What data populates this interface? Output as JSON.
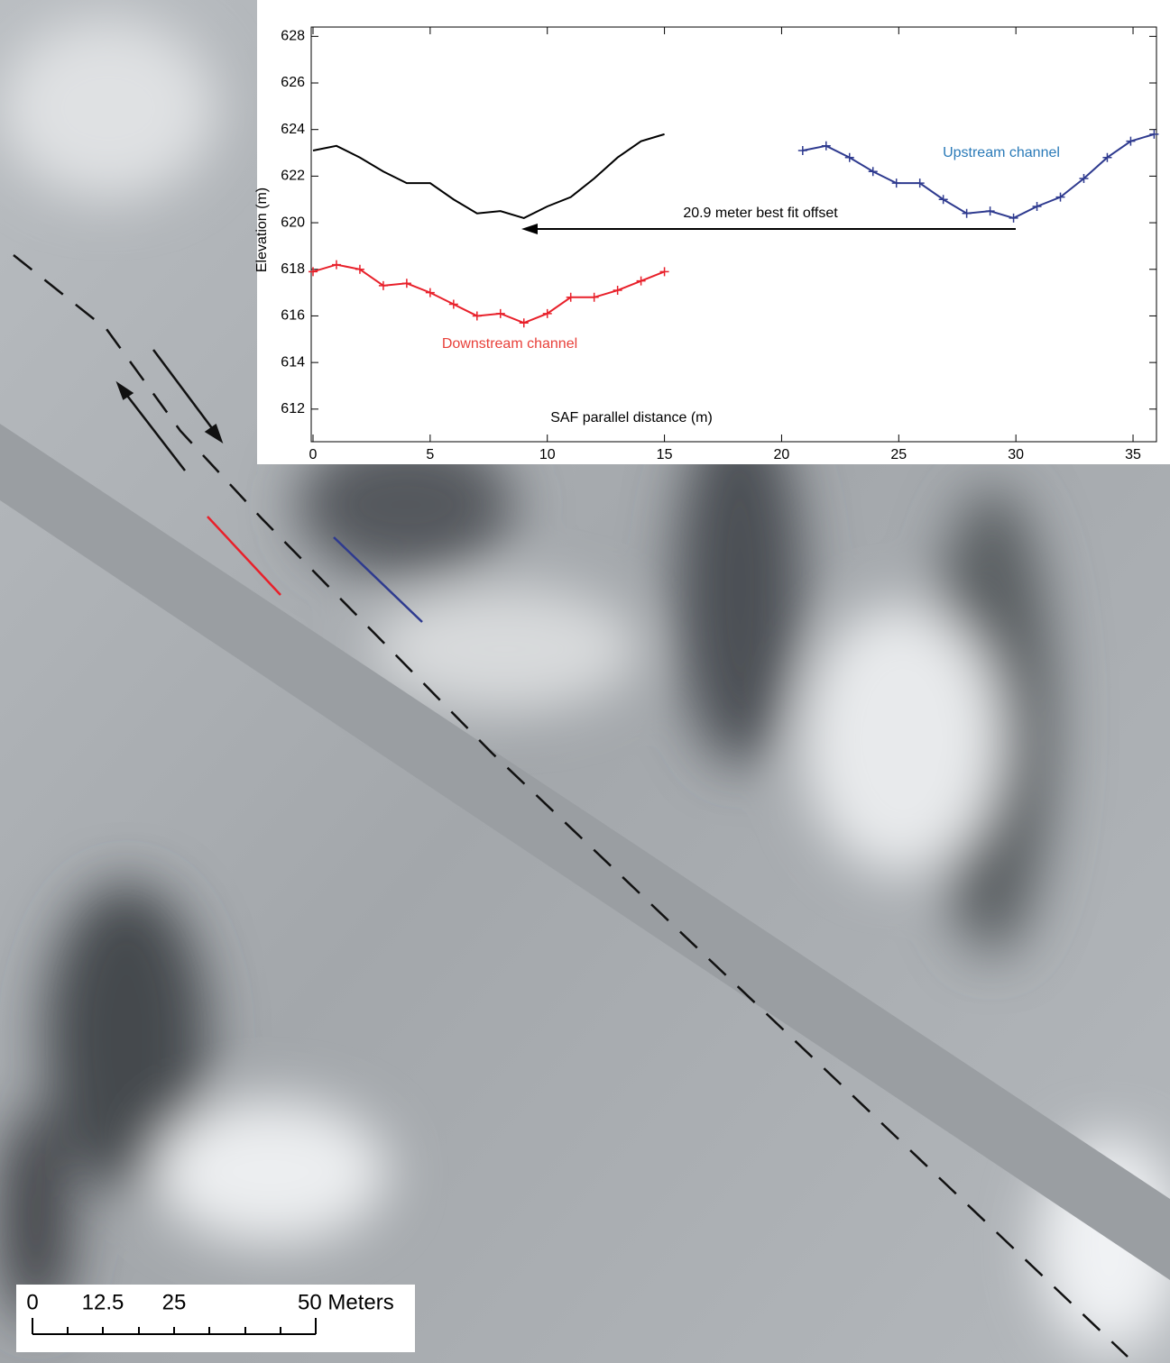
{
  "chart_data": {
    "type": "line",
    "ylabel": "Elevation (m)",
    "xlabel": "SAF parallel distance (m)",
    "annotation": "20.9 meter best fit offset",
    "xlim": [
      0,
      36
    ],
    "xticks": [
      0,
      5,
      10,
      15,
      20,
      25,
      30,
      35
    ],
    "ylim": [
      610.6,
      628.4
    ],
    "yticks": [
      612,
      614,
      616,
      618,
      620,
      622,
      624,
      626,
      628
    ],
    "series": [
      {
        "color": "#000000",
        "markers": false,
        "x": [
          0,
          1,
          2,
          3,
          4,
          5,
          6,
          7,
          8,
          9,
          10,
          11,
          12,
          13,
          14,
          15
        ],
        "values": [
          623.1,
          623.3,
          622.8,
          622.2,
          621.7,
          621.7,
          621.0,
          620.4,
          620.5,
          620.2,
          620.7,
          621.1,
          621.9,
          622.8,
          623.5,
          623.8
        ]
      },
      {
        "name": "Upstream channel",
        "color": "#2e3a8f",
        "label_color": "#2a7ab8",
        "markers": true,
        "x": [
          20.9,
          21.9,
          22.9,
          23.9,
          24.9,
          25.9,
          26.9,
          27.9,
          28.9,
          29.9,
          30.9,
          31.9,
          32.9,
          33.9,
          34.9,
          35.9
        ],
        "values": [
          623.1,
          623.3,
          622.8,
          622.2,
          621.7,
          621.7,
          621.0,
          620.4,
          620.5,
          620.2,
          620.7,
          621.1,
          621.9,
          622.8,
          623.5,
          623.8
        ]
      },
      {
        "name": "Downstream channel",
        "color": "#e8202a",
        "label_color": "#e8403a",
        "markers": true,
        "x": [
          0,
          1,
          2,
          3,
          4,
          5,
          6,
          7,
          8,
          9,
          10,
          11,
          12,
          13,
          14,
          15
        ],
        "values": [
          617.9,
          618.2,
          618.0,
          617.3,
          617.4,
          617.0,
          616.5,
          616.0,
          616.1,
          615.7,
          616.1,
          616.8,
          616.8,
          617.1,
          617.5,
          617.9
        ]
      }
    ]
  },
  "scale_bar": {
    "labels": [
      "0",
      "12.5",
      "25",
      "50 Meters"
    ]
  }
}
